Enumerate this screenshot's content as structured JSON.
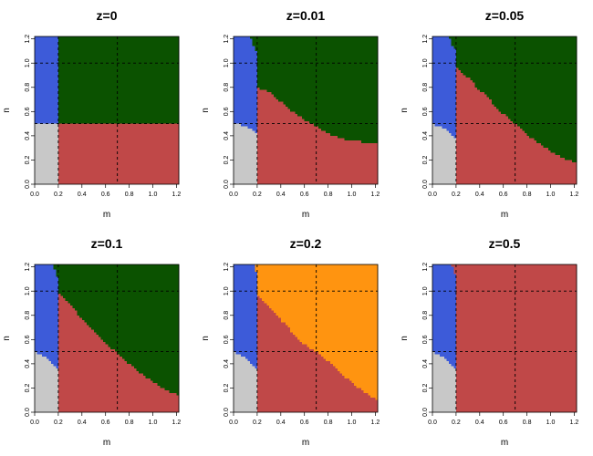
{
  "colors": {
    "gray": "#c8c8c8",
    "blue": "#3d5bd9",
    "green": "#0b5200",
    "red": "#c04848",
    "orange": "#ff9410"
  },
  "chart_data": [
    {
      "type": "heatmap",
      "title": "z=0",
      "xlabel": "m",
      "ylabel": "n",
      "xlim": [
        0,
        1.2
      ],
      "ylim": [
        0,
        1.2
      ],
      "xticks": [
        "0.0",
        "0.2",
        "0.4",
        "0.6",
        "0.8",
        "1.0",
        "1.2"
      ],
      "yticks": [
        "0.0",
        "0.2",
        "0.4",
        "0.6",
        "0.8",
        "1.0",
        "1.2"
      ],
      "reference_lines": {
        "vertical": [
          0.2,
          0.7
        ],
        "horizontal": [
          0.5,
          1.0
        ]
      },
      "regions": {
        "gray_below_n": [
          [
            0,
            0.5
          ],
          [
            0.2,
            0.5
          ]
        ],
        "blue_below_n": [
          [
            0,
            1.22
          ],
          [
            0.2,
            1.22
          ]
        ],
        "red_below_n": [
          [
            0.2,
            0.5
          ],
          [
            1.22,
            0.5
          ]
        ],
        "upper_color": "green"
      }
    },
    {
      "type": "heatmap",
      "title": "z=0.01",
      "xlabel": "m",
      "ylabel": "n",
      "xlim": [
        0,
        1.2
      ],
      "ylim": [
        0,
        1.2
      ],
      "xticks": [
        "0.0",
        "0.2",
        "0.4",
        "0.6",
        "0.8",
        "1.0",
        "1.2"
      ],
      "yticks": [
        "0.0",
        "0.2",
        "0.4",
        "0.6",
        "0.8",
        "1.0",
        "1.2"
      ],
      "reference_lines": {
        "vertical": [
          0.2,
          0.7
        ],
        "horizontal": [
          0.5,
          1.0
        ]
      },
      "regions": {
        "gray_below_n": [
          [
            0,
            0.5
          ],
          [
            0.1,
            0.48
          ],
          [
            0.18,
            0.44
          ],
          [
            0.2,
            0.38
          ]
        ],
        "blue_below_n": [
          [
            0,
            1.22
          ],
          [
            0.14,
            1.22
          ],
          [
            0.17,
            1.15
          ],
          [
            0.2,
            1.08
          ]
        ],
        "red_below_n": [
          [
            0.2,
            0.8
          ],
          [
            0.3,
            0.76
          ],
          [
            0.4,
            0.68
          ],
          [
            0.5,
            0.6
          ],
          [
            0.6,
            0.53
          ],
          [
            0.7,
            0.48
          ],
          [
            0.8,
            0.42
          ],
          [
            0.9,
            0.38
          ],
          [
            1.0,
            0.36
          ],
          [
            1.22,
            0.33
          ]
        ],
        "upper_color": "green"
      }
    },
    {
      "type": "heatmap",
      "title": "z=0.05",
      "xlabel": "m",
      "ylabel": "n",
      "xlim": [
        0,
        1.2
      ],
      "ylim": [
        0,
        1.2
      ],
      "xticks": [
        "0.0",
        "0.2",
        "0.4",
        "0.6",
        "0.8",
        "1.0",
        "1.2"
      ],
      "yticks": [
        "0.0",
        "0.2",
        "0.4",
        "0.6",
        "0.8",
        "1.0",
        "1.2"
      ],
      "reference_lines": {
        "vertical": [
          0.2,
          0.7
        ],
        "horizontal": [
          0.5,
          1.0
        ]
      },
      "regions": {
        "gray_below_n": [
          [
            0,
            0.5
          ],
          [
            0.08,
            0.47
          ],
          [
            0.14,
            0.43
          ],
          [
            0.2,
            0.38
          ]
        ],
        "blue_below_n": [
          [
            0,
            1.22
          ],
          [
            0.14,
            1.22
          ],
          [
            0.17,
            1.15
          ],
          [
            0.2,
            1.1
          ]
        ],
        "red_below_n": [
          [
            0.2,
            0.97
          ],
          [
            0.3,
            0.88
          ],
          [
            0.4,
            0.78
          ],
          [
            0.5,
            0.68
          ],
          [
            0.6,
            0.58
          ],
          [
            0.7,
            0.5
          ],
          [
            0.8,
            0.41
          ],
          [
            0.9,
            0.34
          ],
          [
            1.0,
            0.27
          ],
          [
            1.1,
            0.22
          ],
          [
            1.22,
            0.17
          ]
        ],
        "upper_color": "green"
      }
    },
    {
      "type": "heatmap",
      "title": "z=0.1",
      "xlabel": "m",
      "ylabel": "n",
      "xlim": [
        0,
        1.2
      ],
      "ylim": [
        0,
        1.2
      ],
      "xticks": [
        "0.0",
        "0.2",
        "0.4",
        "0.6",
        "0.8",
        "1.0",
        "1.2"
      ],
      "yticks": [
        "0.0",
        "0.2",
        "0.4",
        "0.6",
        "0.8",
        "1.0",
        "1.2"
      ],
      "reference_lines": {
        "vertical": [
          0.2,
          0.7
        ],
        "horizontal": [
          0.5,
          1.0
        ]
      },
      "regions": {
        "gray_below_n": [
          [
            0,
            0.5
          ],
          [
            0.08,
            0.46
          ],
          [
            0.14,
            0.4
          ],
          [
            0.2,
            0.35
          ]
        ],
        "blue_below_n": [
          [
            0,
            1.22
          ],
          [
            0.16,
            1.22
          ],
          [
            0.18,
            1.15
          ],
          [
            0.2,
            1.1
          ]
        ],
        "red_below_n": [
          [
            0.2,
            0.98
          ],
          [
            0.3,
            0.88
          ],
          [
            0.4,
            0.78
          ],
          [
            0.5,
            0.67
          ],
          [
            0.6,
            0.57
          ],
          [
            0.7,
            0.49
          ],
          [
            0.8,
            0.4
          ],
          [
            0.9,
            0.32
          ],
          [
            1.0,
            0.25
          ],
          [
            1.1,
            0.19
          ],
          [
            1.22,
            0.14
          ]
        ],
        "upper_color": "green"
      }
    },
    {
      "type": "heatmap",
      "title": "z=0.2",
      "xlabel": "m",
      "ylabel": "n",
      "xlim": [
        0,
        1.2
      ],
      "ylim": [
        0,
        1.2
      ],
      "xticks": [
        "0.0",
        "0.2",
        "0.4",
        "0.6",
        "0.8",
        "1.0",
        "1.2"
      ],
      "yticks": [
        "0.0",
        "0.2",
        "0.4",
        "0.6",
        "0.8",
        "1.0",
        "1.2"
      ],
      "reference_lines": {
        "vertical": [
          0.2,
          0.7
        ],
        "horizontal": [
          0.5,
          1.0
        ]
      },
      "regions": {
        "gray_below_n": [
          [
            0,
            0.5
          ],
          [
            0.08,
            0.46
          ],
          [
            0.14,
            0.4
          ],
          [
            0.2,
            0.35
          ]
        ],
        "blue_below_n": [
          [
            0,
            1.22
          ],
          [
            0.18,
            1.22
          ],
          [
            0.2,
            1.1
          ]
        ],
        "red_below_n": [
          [
            0.2,
            0.98
          ],
          [
            0.3,
            0.87
          ],
          [
            0.4,
            0.76
          ],
          [
            0.5,
            0.66
          ],
          [
            0.6,
            0.56
          ],
          [
            0.7,
            0.5
          ],
          [
            0.8,
            0.42
          ],
          [
            0.9,
            0.33
          ],
          [
            1.0,
            0.25
          ],
          [
            1.1,
            0.17
          ],
          [
            1.22,
            0.1
          ]
        ],
        "upper_color": "orange"
      }
    },
    {
      "type": "heatmap",
      "title": "z=0.5",
      "xlabel": "m",
      "ylabel": "n",
      "xlim": [
        0,
        1.2
      ],
      "ylim": [
        0,
        1.2
      ],
      "xticks": [
        "0.0",
        "0.2",
        "0.4",
        "0.6",
        "0.8",
        "1.0",
        "1.2"
      ],
      "yticks": [
        "0.0",
        "0.2",
        "0.4",
        "0.6",
        "0.8",
        "1.0",
        "1.2"
      ],
      "reference_lines": {
        "vertical": [
          0.2,
          0.7
        ],
        "horizontal": [
          0.5,
          1.0
        ]
      },
      "regions": {
        "gray_below_n": [
          [
            0,
            0.5
          ],
          [
            0.08,
            0.46
          ],
          [
            0.14,
            0.4
          ],
          [
            0.2,
            0.35
          ]
        ],
        "blue_below_n": [
          [
            0,
            1.22
          ],
          [
            0.16,
            1.22
          ],
          [
            0.18,
            1.17
          ],
          [
            0.2,
            1.1
          ]
        ],
        "red_below_n": [
          [
            0.2,
            1.22
          ],
          [
            1.22,
            1.22
          ]
        ],
        "upper_color": "red"
      }
    }
  ]
}
